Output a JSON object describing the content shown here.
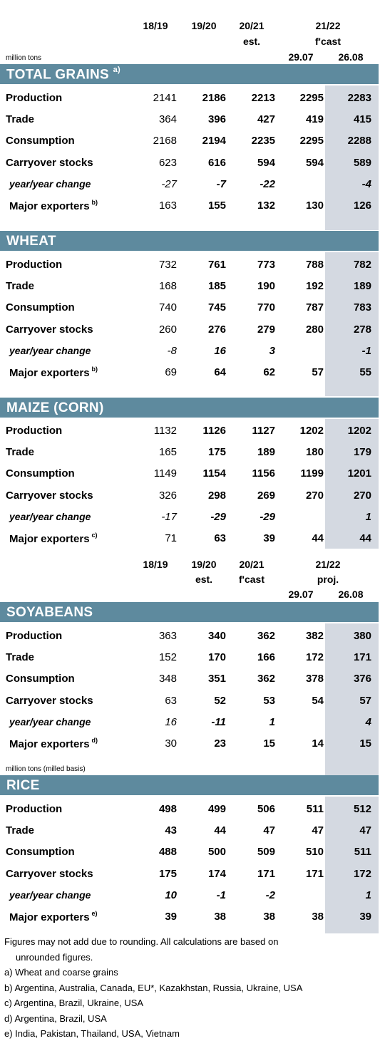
{
  "units": {
    "grains": "million tons",
    "rice": "million tons (milled basis)"
  },
  "header_a": {
    "c1": "18/19",
    "c2": "19/20",
    "c3_top": "20/21",
    "c3_bottom": "est.",
    "c45_top": "21/22",
    "c45_mid": "f'cast",
    "c4": "29.07",
    "c5": "26.08"
  },
  "header_b": {
    "c1": "18/19",
    "c2_top": "19/20",
    "c2_bottom": "est.",
    "c3_top": "20/21",
    "c3_bottom": "f'cast",
    "c45_top": "21/22",
    "c45_mid": "proj.",
    "c4": "29.07",
    "c5": "26.08"
  },
  "sections": {
    "total": {
      "title": "TOTAL GRAINS",
      "note": "a)",
      "rows": [
        {
          "label": "Production",
          "note": "",
          "values": [
            "2141",
            "2186",
            "2213",
            "2295",
            "2283"
          ]
        },
        {
          "label": "Trade",
          "note": "",
          "values": [
            "364",
            "396",
            "427",
            "419",
            "415"
          ]
        },
        {
          "label": "Consumption",
          "note": "",
          "values": [
            "2168",
            "2194",
            "2235",
            "2295",
            "2288"
          ]
        },
        {
          "label": "Carryover stocks",
          "note": "",
          "values": [
            "623",
            "616",
            "594",
            "594",
            "589"
          ]
        },
        {
          "label": "year/year change",
          "note": "",
          "values": [
            "-27",
            "-7",
            "-22",
            "",
            "-4"
          ]
        },
        {
          "label": "Major exporters",
          "note": "b)",
          "values": [
            "163",
            "155",
            "132",
            "130",
            "126"
          ]
        }
      ]
    },
    "wheat": {
      "title": "WHEAT",
      "note": "",
      "rows": [
        {
          "label": "Production",
          "note": "",
          "values": [
            "732",
            "761",
            "773",
            "788",
            "782"
          ]
        },
        {
          "label": "Trade",
          "note": "",
          "values": [
            "168",
            "185",
            "190",
            "192",
            "189"
          ]
        },
        {
          "label": "Consumption",
          "note": "",
          "values": [
            "740",
            "745",
            "770",
            "787",
            "783"
          ]
        },
        {
          "label": "Carryover stocks",
          "note": "",
          "values": [
            "260",
            "276",
            "279",
            "280",
            "278"
          ]
        },
        {
          "label": "year/year change",
          "note": "",
          "values": [
            "-8",
            "16",
            "3",
            "",
            "-1"
          ]
        },
        {
          "label": "Major exporters",
          "note": "b)",
          "values": [
            "69",
            "64",
            "62",
            "57",
            "55"
          ]
        }
      ]
    },
    "maize": {
      "title": "MAIZE (CORN)",
      "note": "",
      "rows": [
        {
          "label": "Production",
          "note": "",
          "values": [
            "1132",
            "1126",
            "1127",
            "1202",
            "1202"
          ]
        },
        {
          "label": "Trade",
          "note": "",
          "values": [
            "165",
            "175",
            "189",
            "180",
            "179"
          ]
        },
        {
          "label": "Consumption",
          "note": "",
          "values": [
            "1149",
            "1154",
            "1156",
            "1199",
            "1201"
          ]
        },
        {
          "label": "Carryover stocks",
          "note": "",
          "values": [
            "326",
            "298",
            "269",
            "270",
            "270"
          ]
        },
        {
          "label": "year/year change",
          "note": "",
          "values": [
            "-17",
            "-29",
            "-29",
            "",
            "1"
          ]
        },
        {
          "label": "Major exporters",
          "note": "c)",
          "values": [
            "71",
            "63",
            "39",
            "44",
            "44"
          ]
        }
      ]
    },
    "soy": {
      "title": "SOYABEANS",
      "note": "",
      "rows": [
        {
          "label": "Production",
          "note": "",
          "values": [
            "363",
            "340",
            "362",
            "382",
            "380"
          ]
        },
        {
          "label": "Trade",
          "note": "",
          "values": [
            "152",
            "170",
            "166",
            "172",
            "171"
          ]
        },
        {
          "label": "Consumption",
          "note": "",
          "values": [
            "348",
            "351",
            "362",
            "378",
            "376"
          ]
        },
        {
          "label": "Carryover stocks",
          "note": "",
          "values": [
            "63",
            "52",
            "53",
            "54",
            "57"
          ]
        },
        {
          "label": "year/year change",
          "note": "",
          "values": [
            "16",
            "-11",
            "1",
            "",
            "4"
          ]
        },
        {
          "label": "Major exporters",
          "note": "d)",
          "values": [
            "30",
            "23",
            "15",
            "14",
            "15"
          ]
        }
      ]
    },
    "rice": {
      "title": "RICE",
      "note": "",
      "rows": [
        {
          "label": "Production",
          "note": "",
          "values": [
            "498",
            "499",
            "506",
            "511",
            "512"
          ]
        },
        {
          "label": "Trade",
          "note": "",
          "values": [
            "43",
            "44",
            "47",
            "47",
            "47"
          ]
        },
        {
          "label": "Consumption",
          "note": "",
          "values": [
            "488",
            "500",
            "509",
            "510",
            "511"
          ]
        },
        {
          "label": "Carryover stocks",
          "note": "",
          "values": [
            "175",
            "174",
            "171",
            "171",
            "172"
          ]
        },
        {
          "label": "year/year change",
          "note": "",
          "values": [
            "10",
            "-1",
            "-2",
            "",
            "1"
          ]
        },
        {
          "label": "Major exporters",
          "note": "e)",
          "values": [
            "39",
            "38",
            "38",
            "38",
            "39"
          ]
        }
      ]
    }
  },
  "footnotes": {
    "rounding_1": "Figures may not add due to rounding. All calculations are based on",
    "rounding_2": "unrounded figures.",
    "a": "a) Wheat and coarse grains",
    "b": "b) Argentina, Australia, Canada, EU*, Kazakhstan, Russia, Ukraine, USA",
    "c": "c) Argentina, Brazil, Ukraine, USA",
    "d": "d) Argentina, Brazil, USA",
    "e": "e) India, Pakistan, Thailand, USA, Vietnam"
  },
  "colors": {
    "band": "#5e8a9e",
    "shaded_column": "#d4d9e1"
  }
}
